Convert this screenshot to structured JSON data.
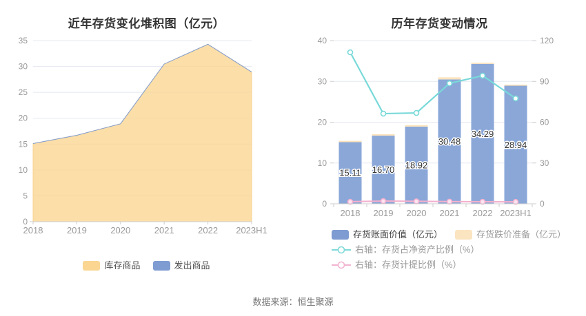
{
  "footer": {
    "source": "数据来源：恒生聚源"
  },
  "style": {
    "background": "#ffffff",
    "grid_color": "#E4E8F2",
    "axis_color": "#CCCCCC",
    "tick_text_color": "#999999",
    "title_color": "#333333",
    "bar_label_color": "#333333"
  },
  "chart_data": [
    {
      "type": "area",
      "title": "近年存货变化堆积图（亿元）",
      "categories": [
        "2018",
        "2019",
        "2020",
        "2021",
        "2022",
        "2023H1"
      ],
      "ylim": [
        0,
        35
      ],
      "y_ticks": [
        0,
        5,
        10,
        15,
        20,
        25,
        30,
        35
      ],
      "grid": true,
      "legend_position": "bottom",
      "series": [
        {
          "name": "库存商品",
          "color": "#FAD692",
          "values": [
            15.11,
            16.7,
            18.92,
            30.48,
            34.29,
            28.94
          ]
        },
        {
          "name": "发出商品",
          "color": "#7E9CD2",
          "values": [
            0,
            0,
            0,
            0,
            0,
            0
          ]
        }
      ],
      "legend": [
        {
          "label": "库存商品",
          "type": "bar",
          "color": "#FAD692",
          "label_color": "#4D4D4D"
        },
        {
          "label": "发出商品",
          "type": "bar",
          "color": "#7E9CD2",
          "label_color": "#4D4D4D"
        }
      ]
    },
    {
      "type": "bar",
      "title": "历年存货变动情况",
      "categories": [
        "2018",
        "2019",
        "2020",
        "2021",
        "2022",
        "2023H1"
      ],
      "grid": true,
      "left_axis": {
        "ticks": [
          0,
          10,
          20,
          30,
          40
        ],
        "max": 40
      },
      "right_axis": {
        "ticks": [
          0,
          30,
          60,
          90,
          120
        ],
        "max": 120
      },
      "series": [
        {
          "name": "存货账面价值（亿元）",
          "type": "bar",
          "axis": "left",
          "color": "#8AA7D8",
          "values": [
            15.11,
            16.7,
            18.92,
            30.48,
            34.29,
            28.94
          ],
          "data_labels": [
            "15.11",
            "16.70",
            "18.92",
            "30.48",
            "34.29",
            "28.94"
          ]
        },
        {
          "name": "存货跌价准备（亿元）",
          "type": "bar",
          "axis": "left",
          "stacked": true,
          "color": "#FBE3BD",
          "values": [
            0.33,
            0.35,
            0.38,
            0.52,
            0.3,
            0.28
          ]
        },
        {
          "name": "右轴：存货占净资产比例（%）",
          "type": "line",
          "axis": "right",
          "color": "#79D9D9",
          "marker_fill": "#FFFFFF",
          "values": [
            111.4,
            66.3,
            66.8,
            88.6,
            94.2,
            77.5
          ]
        },
        {
          "name": "右轴：存货计提比例（%）",
          "type": "line",
          "axis": "right",
          "color": "#F3B0CE",
          "marker_fill": "#FCE3F0",
          "values": [
            1.5,
            2.0,
            1.8,
            1.6,
            1.5,
            1.4
          ]
        }
      ],
      "legend_rows": [
        [
          {
            "label": "存货账面价值（亿元）",
            "type": "bar",
            "color": "#7E9CD2",
            "label_color": "#404040"
          },
          {
            "label": "存货跌价准备（亿元）",
            "type": "bar",
            "color": "#FBE4C0",
            "label_color": "#9B9B9B"
          }
        ],
        [
          {
            "label": "右轴：存货占净资产比例（%）",
            "type": "line",
            "color": "#7ED9D9",
            "label_color": "#999999"
          }
        ],
        [
          {
            "label": "右轴：存货计提比例（%）",
            "type": "line",
            "color": "#F2B3D0",
            "label_color": "#999999"
          }
        ]
      ]
    }
  ]
}
